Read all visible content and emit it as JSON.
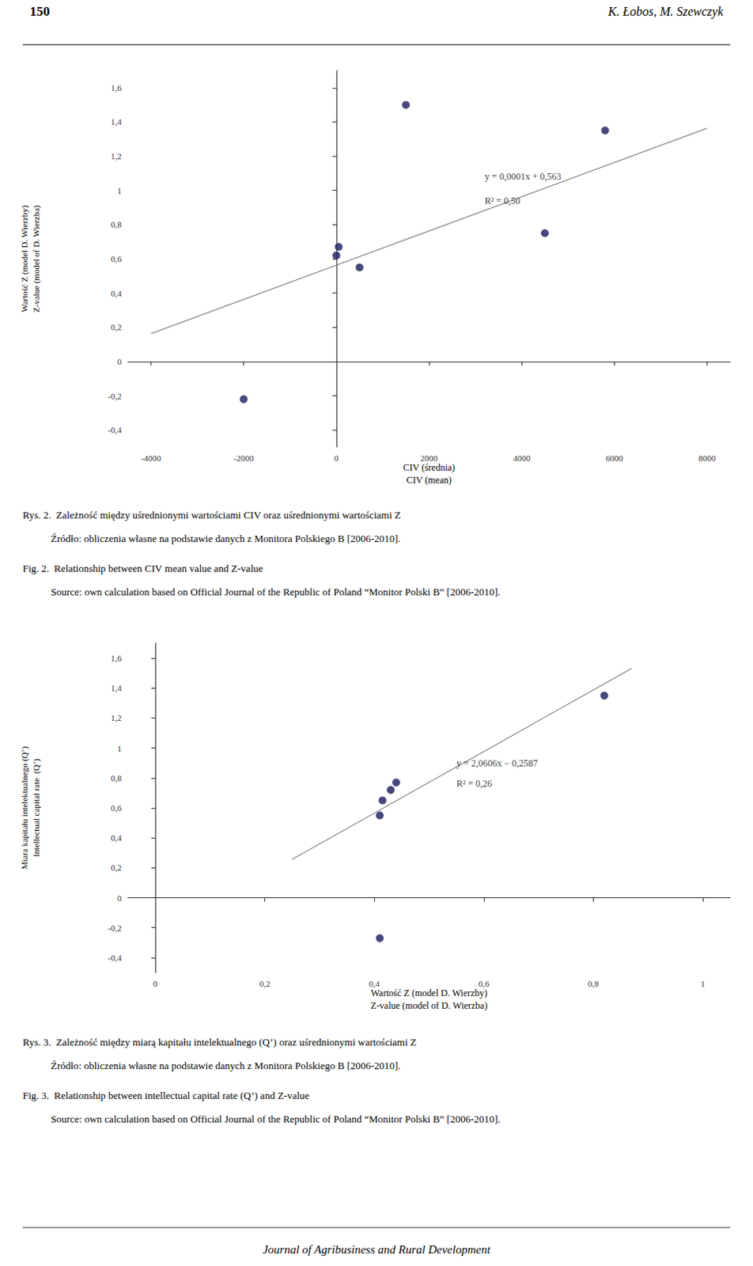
{
  "header": [
    "150",
    "K. Łobos, M. Szewczyk"
  ],
  "footer": "Journal of Agribusiness and Rural Development",
  "chart_data": [
    {
      "type": "scatter",
      "xlabel": "CIV (średnia)\nCIV (mean)",
      "ylabel": "Wartość Z (model D. Wierzby)\nZ-value (model of D. Wierzba)",
      "xlim": [
        -4500,
        8500
      ],
      "ylim": [
        -0.5,
        1.7
      ],
      "xticks": [
        -4000,
        -2000,
        0,
        2000,
        4000,
        6000,
        8000
      ],
      "yticks": [
        {
          "value": -0.4,
          "label": "-0,4"
        },
        {
          "value": -0.2,
          "label": "-0,2"
        },
        0,
        {
          "value": 0.2,
          "label": "0,2"
        },
        {
          "value": 0.4,
          "label": "0,4"
        },
        {
          "value": 0.6,
          "label": "0,6"
        },
        {
          "value": 0.8,
          "label": "0,8"
        },
        1,
        {
          "value": 1.2,
          "label": "1,2"
        },
        {
          "value": 1.4,
          "label": "1,4"
        },
        {
          "value": 1.6,
          "label": "1,6"
        }
      ],
      "grid": false,
      "series": [
        {
          "type": "scatter",
          "color": "#1a1a5e",
          "x": [
            -2000,
            0,
            50,
            500,
            1500,
            4500,
            5800
          ],
          "values": [
            -0.22,
            0.62,
            0.67,
            0.55,
            1.5,
            0.75,
            1.35
          ]
        },
        {
          "type": "line",
          "color": "#666666",
          "x": [
            -4000,
            8000
          ],
          "values": [
            0.163,
            1.363
          ]
        }
      ],
      "annotations": [
        {
          "text": "y = 0,0001x + 0,563",
          "x": 3200,
          "y": 1.08
        },
        {
          "text": "R² = 0,50",
          "x": 3200,
          "y": 0.94
        }
      ],
      "caption": [
        "Rys. 2.  Zależność między uśrednionymi wartościami CIV oraz uśrednionymi wartościami Z",
        "           Źródło: obliczenia własne na podstawie danych z Monitora Polskiego B [2006-2010].",
        "Fig. 2.  Relationship between CIV mean value and Z-value",
        "           Source: own calculation based on Official Journal of the Republic of Poland “Monitor Polski B” [2006-2010]."
      ]
    },
    {
      "type": "scatter",
      "xlabel": "Wartość Z (model D. Wierzby)\nZ-value (model of D. Wierzba)",
      "ylabel": "Miara kapitału intelektualnego (Q’)\nIntellectual capital rate  (Q’)",
      "xlim": [
        -0.05,
        1.05
      ],
      "ylim": [
        -0.5,
        1.7
      ],
      "xticks": [
        0,
        {
          "value": 0.2,
          "label": "0,2"
        },
        {
          "value": 0.4,
          "label": "0,4"
        },
        {
          "value": 0.6,
          "label": "0,6"
        },
        {
          "value": 0.8,
          "label": "0,8"
        },
        1
      ],
      "yticks": [
        {
          "value": -0.4,
          "label": "-0,4"
        },
        {
          "value": -0.2,
          "label": "-0,2"
        },
        0,
        {
          "value": 0.2,
          "label": "0,2"
        },
        {
          "value": 0.4,
          "label": "0,4"
        },
        {
          "value": 0.6,
          "label": "0,6"
        },
        {
          "value": 0.8,
          "label": "0,8"
        },
        1,
        {
          "value": 1.2,
          "label": "1,2"
        },
        {
          "value": 1.4,
          "label": "1,4"
        },
        {
          "value": 1.6,
          "label": "1,6"
        }
      ],
      "grid": false,
      "series": [
        {
          "type": "scatter",
          "color": "#1a1a5e",
          "x": [
            0.41,
            0.41,
            0.415,
            0.43,
            0.44,
            0.82
          ],
          "values": [
            -0.27,
            0.55,
            0.65,
            0.72,
            0.77,
            1.35
          ]
        },
        {
          "type": "line",
          "color": "#666666",
          "x": [
            0.25,
            0.87
          ],
          "values": [
            0.2566,
            1.5318
          ]
        }
      ],
      "annotations": [
        {
          "text": "y = 2,0606x − 0,2587",
          "x": 0.55,
          "y": 0.9
        },
        {
          "text": "R² = 0,26",
          "x": 0.55,
          "y": 0.76
        }
      ],
      "caption": [
        "Rys. 3.  Zależność między miarą kapitału intelektualnego (Q’) oraz uśrednionymi wartościami Z",
        "           Źródło: obliczenia własne na podstawie danych z Monitora Polskiego B [2006-2010].",
        "Fig. 3.  Relationship between intellectual capital rate (Q’) and Z-value",
        "           Source: own calculation based on Official Journal of the Republic of Poland “Monitor Polski B” [2006-2010]."
      ]
    }
  ]
}
